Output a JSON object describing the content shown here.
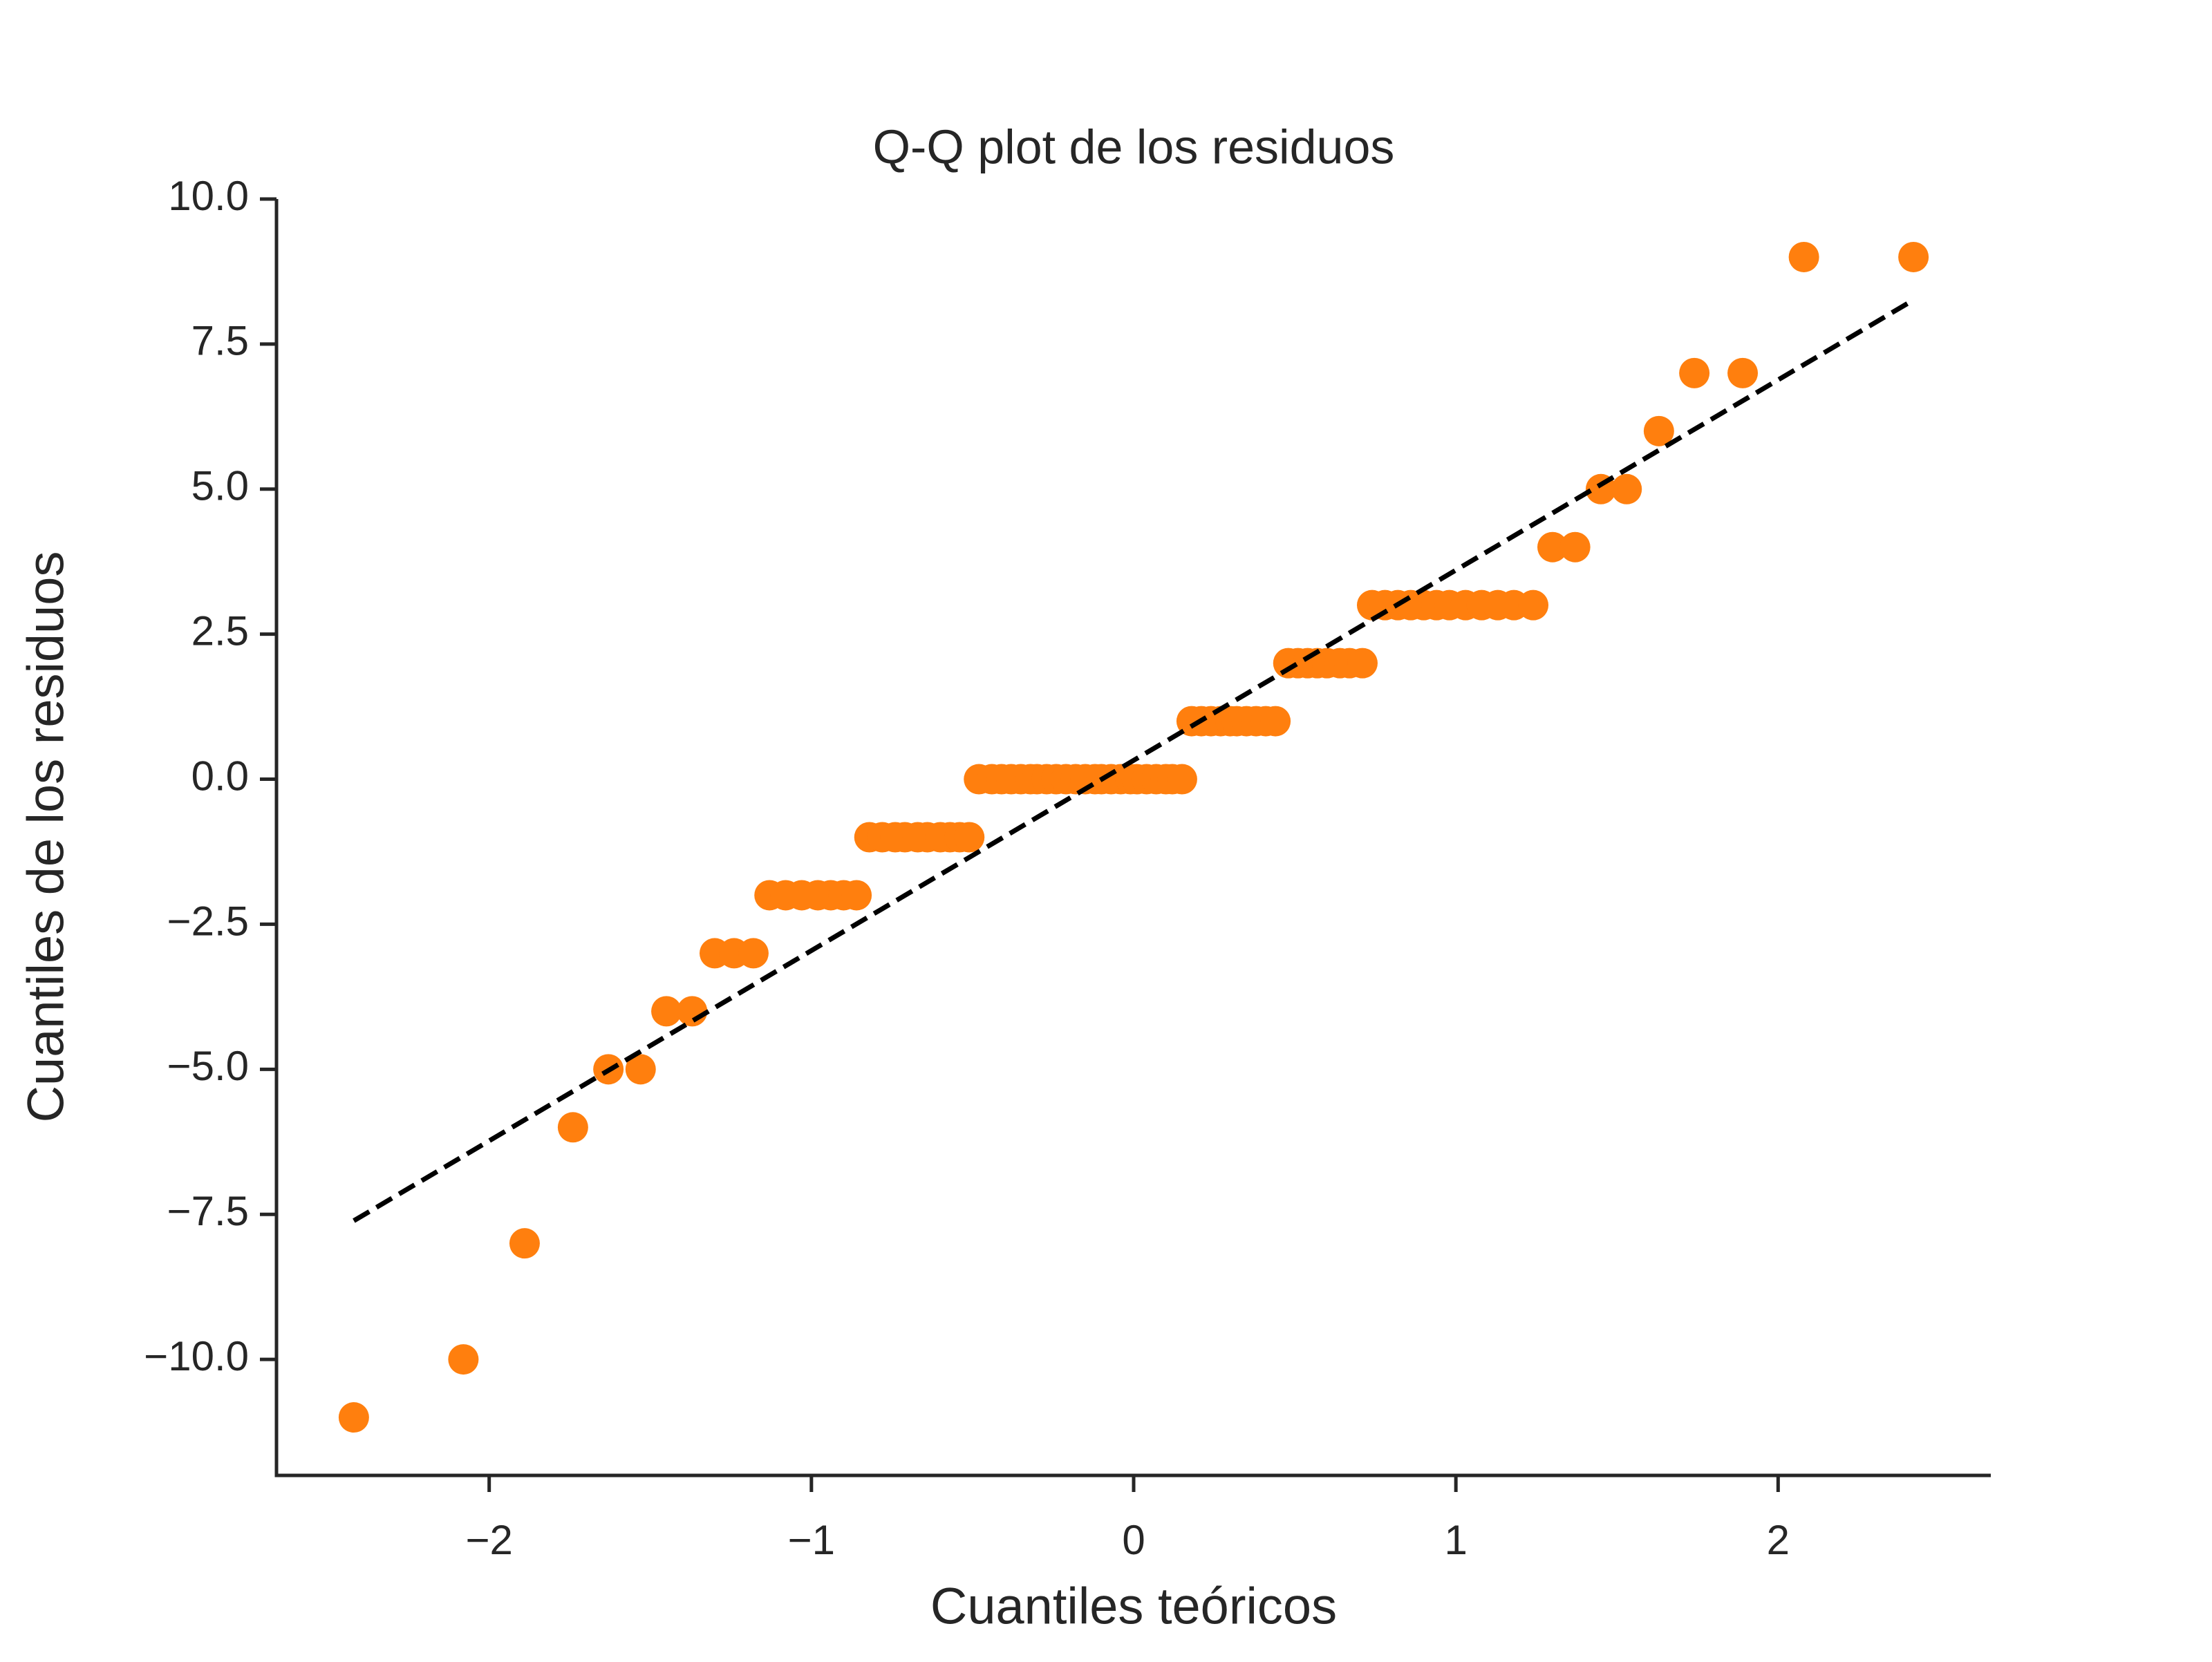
{
  "chart_data": {
    "type": "scatter",
    "title": "Q-Q plot de los residuos",
    "xlabel": "Cuantiles teóricos",
    "ylabel": "Cuantiles de los residuos",
    "color": "#ff7f0e",
    "x": [
      -2.42,
      -2.08,
      -1.89,
      -1.74,
      -1.63,
      -1.53,
      -1.45,
      -1.37,
      -1.3,
      -1.24,
      -1.18,
      -1.13,
      -1.08,
      -1.03,
      -0.98,
      -0.94,
      -0.9,
      -0.86,
      -0.82,
      -0.78,
      -0.74,
      -0.71,
      -0.67,
      -0.64,
      -0.6,
      -0.57,
      -0.54,
      -0.51,
      -0.48,
      -0.44,
      -0.41,
      -0.38,
      -0.35,
      -0.32,
      -0.3,
      -0.27,
      -0.24,
      -0.21,
      -0.18,
      -0.15,
      -0.12,
      -0.1,
      -0.07,
      -0.04,
      -0.01,
      0.01,
      0.04,
      0.07,
      0.1,
      0.12,
      0.15,
      0.18,
      0.21,
      0.24,
      0.27,
      0.3,
      0.32,
      0.35,
      0.38,
      0.41,
      0.44,
      0.48,
      0.51,
      0.54,
      0.57,
      0.6,
      0.64,
      0.67,
      0.71,
      0.74,
      0.78,
      0.82,
      0.86,
      0.9,
      0.94,
      0.98,
      1.03,
      1.08,
      1.13,
      1.18,
      1.24,
      1.3,
      1.37,
      1.45,
      1.53,
      1.63,
      1.74,
      1.89,
      2.08,
      2.42
    ],
    "values": [
      -11,
      -10,
      -8,
      -6,
      -5,
      -5,
      -4,
      -4,
      -3,
      -3,
      -3,
      -2,
      -2,
      -2,
      -2,
      -2,
      -2,
      -2,
      -1,
      -1,
      -1,
      -1,
      -1,
      -1,
      -1,
      -1,
      -1,
      -1,
      0,
      0,
      0,
      0,
      0,
      0,
      0,
      0,
      0,
      0,
      0,
      0,
      0,
      0,
      0,
      0,
      0,
      0,
      0,
      0,
      0,
      0,
      0,
      1,
      1,
      1,
      1,
      1,
      1,
      1,
      1,
      1,
      1,
      2,
      2,
      2,
      2,
      2,
      2,
      2,
      2,
      3,
      3,
      3,
      3,
      3,
      3,
      3,
      3,
      3,
      3,
      3,
      3,
      4,
      4,
      5,
      5,
      6,
      7,
      7,
      9,
      9
    ],
    "fit_line": {
      "x": [
        -2.42,
        2.42
      ],
      "values": [
        -7.61,
        8.26
      ],
      "color": "#000000",
      "dashed": true
    },
    "xlim": [
      -2.66,
      2.66
    ],
    "ylim": [
      -12.0,
      10.0
    ],
    "xticks": [
      {
        "value": -2,
        "label": "−2"
      },
      {
        "value": -1,
        "label": "−1"
      },
      0,
      1,
      2
    ],
    "yticks": [
      {
        "value": -10,
        "label": "−10.0"
      },
      {
        "value": -7.5,
        "label": "−7.5"
      },
      {
        "value": -5,
        "label": "−5.0"
      },
      {
        "value": -2.5,
        "label": "−2.5"
      },
      {
        "value": 0,
        "label": "0.0"
      },
      {
        "value": 2.5,
        "label": "2.5"
      },
      {
        "value": 5,
        "label": "5.0"
      },
      {
        "value": 7.5,
        "label": "7.5"
      },
      {
        "value": 10,
        "label": "10.0"
      }
    ],
    "grid": false
  }
}
